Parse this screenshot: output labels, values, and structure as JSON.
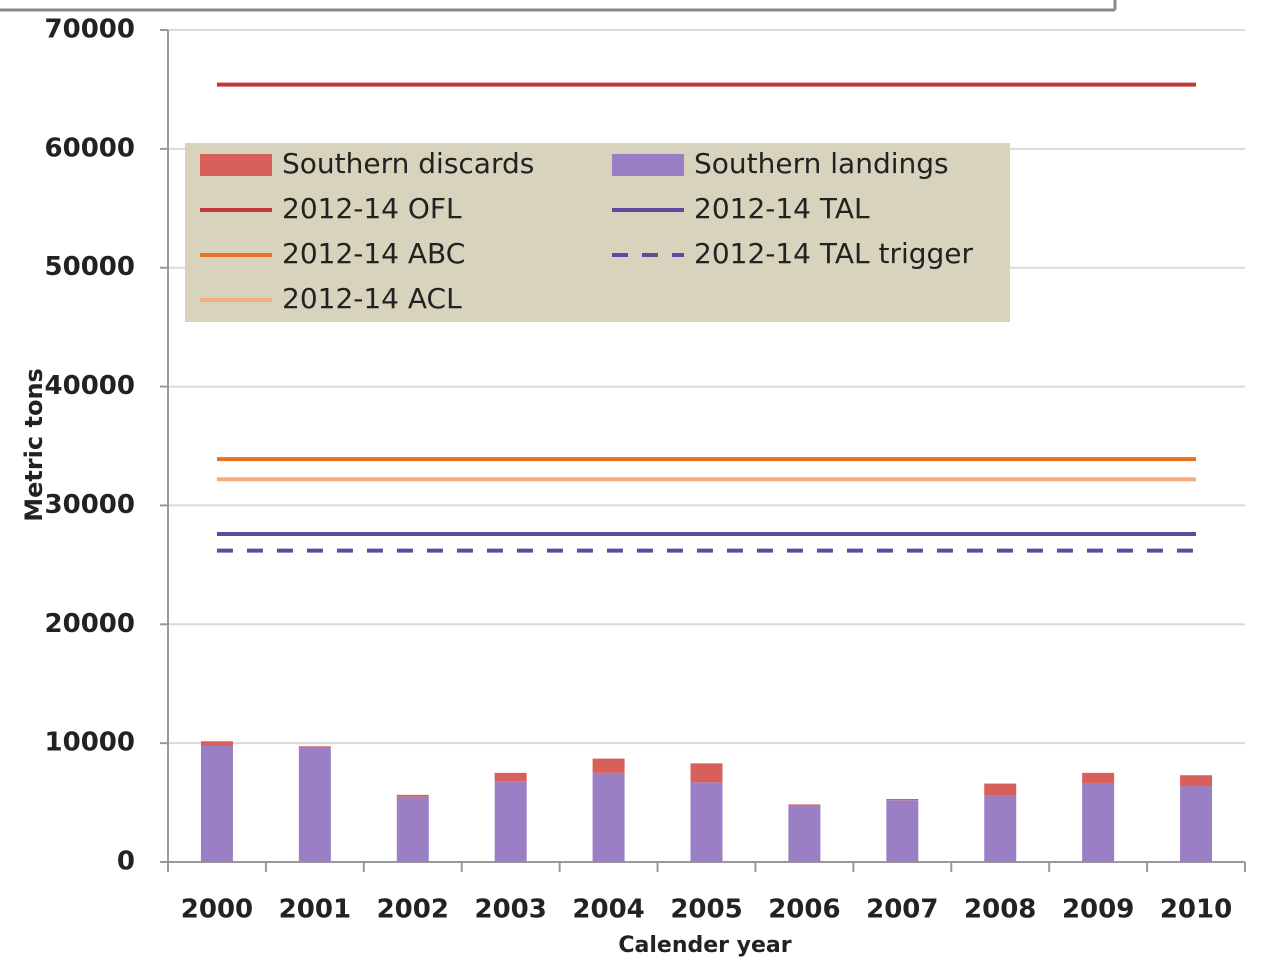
{
  "chart_data": {
    "type": "bar",
    "x_label": "Calender year",
    "y_label": "Metric tons",
    "categories": [
      "2000",
      "2001",
      "2002",
      "2003",
      "2004",
      "2005",
      "2006",
      "2007",
      "2008",
      "2009",
      "2010"
    ],
    "series": [
      {
        "name": "Southern discards",
        "type": "bar",
        "stack": true,
        "color": "#d9605a",
        "values": [
          400,
          50,
          150,
          700,
          1200,
          1600,
          50,
          100,
          1000,
          850,
          900
        ]
      },
      {
        "name": "Southern landings",
        "type": "bar",
        "stack": true,
        "color": "#9b7fc4",
        "values": [
          9760,
          9700,
          5500,
          6800,
          7500,
          6700,
          4800,
          5200,
          5600,
          6650,
          6400
        ]
      },
      {
        "name": "2012-14 OFL",
        "type": "line",
        "color": "#c0393b",
        "values": [
          65400,
          65400,
          65400,
          65400,
          65400,
          65400,
          65400,
          65400,
          65400,
          65400,
          65400
        ]
      },
      {
        "name": "2012-14 TAL",
        "type": "line",
        "color": "#5e4a9e",
        "values": [
          27600,
          27600,
          27600,
          27600,
          27600,
          27600,
          27600,
          27600,
          27600,
          27600,
          27600
        ]
      },
      {
        "name": "2012-14 ABC",
        "type": "line",
        "color": "#e8731f",
        "values": [
          33900,
          33900,
          33900,
          33900,
          33900,
          33900,
          33900,
          33900,
          33900,
          33900,
          33900
        ]
      },
      {
        "name": "2012-14 TAL trigger",
        "type": "line",
        "line_style": "dashed",
        "color": "#5e4a9e",
        "values": [
          26200,
          26200,
          26200,
          26200,
          26200,
          26200,
          26200,
          26200,
          26200,
          26200,
          26200
        ]
      },
      {
        "name": "2012-14 ACL",
        "type": "line",
        "color": "#f6ad80",
        "values": [
          32200,
          32200,
          32200,
          32200,
          32200,
          32200,
          32200,
          32200,
          32200,
          32200,
          32200
        ]
      }
    ],
    "ylim": [
      0,
      70000
    ],
    "yticks": [
      0,
      10000,
      20000,
      30000,
      40000,
      50000,
      60000,
      70000
    ],
    "grid": true,
    "legend": "upper left"
  }
}
